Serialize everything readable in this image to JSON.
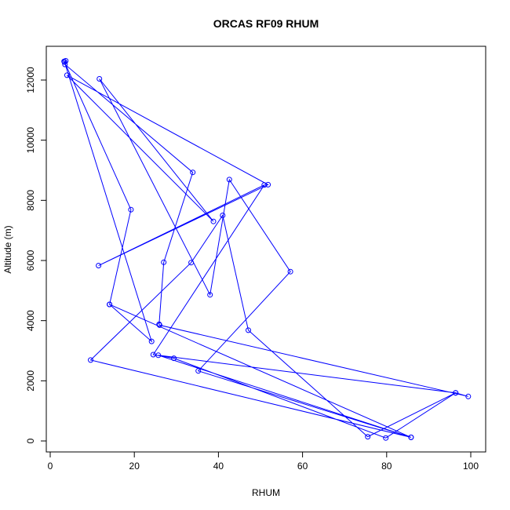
{
  "chart_data": {
    "type": "line",
    "title": "ORCAS RF09 RHUM",
    "xlabel": "RHUM",
    "ylabel": "Altitude (m)",
    "xlim": [
      0,
      100
    ],
    "ylim": [
      0,
      12000
    ],
    "x_ticks": [
      0,
      20,
      40,
      60,
      80,
      100
    ],
    "x_tick_labels": [
      "0",
      "20",
      "40",
      "60",
      "80",
      "100"
    ],
    "y_ticks": [
      0,
      2000,
      4000,
      6000,
      8000,
      10000,
      12000
    ],
    "y_tick_labels": [
      "0",
      "2000",
      "4000",
      "6000",
      "8000",
      "10000",
      "12000"
    ],
    "grid": false,
    "legend": "none",
    "series": [
      {
        "color": "#0000ff",
        "points": [
          [
            3.3,
            12620
          ],
          [
            3.7,
            12640
          ],
          [
            3.5,
            12520
          ],
          [
            33.9,
            8930
          ],
          [
            27.0,
            5940
          ],
          [
            25.9,
            3880
          ],
          [
            26.0,
            3850
          ],
          [
            99.4,
            1480
          ],
          [
            96.4,
            1600
          ],
          [
            79.8,
            100
          ],
          [
            29.4,
            2750
          ],
          [
            24.5,
            2870
          ],
          [
            50.9,
            8510
          ],
          [
            11.5,
            5830
          ],
          [
            51.8,
            8520
          ],
          [
            4.0,
            12160
          ],
          [
            38.8,
            7300
          ],
          [
            11.7,
            12040
          ],
          [
            38.0,
            4860
          ],
          [
            42.6,
            8690
          ],
          [
            57.1,
            5630
          ],
          [
            35.2,
            2330
          ],
          [
            85.8,
            120
          ],
          [
            25.7,
            2850
          ],
          [
            96.4,
            1600
          ],
          [
            75.5,
            140
          ],
          [
            47.1,
            3680
          ],
          [
            41.0,
            7500
          ],
          [
            33.5,
            5930
          ],
          [
            9.6,
            2690
          ],
          [
            85.8,
            120
          ],
          [
            14.1,
            4540
          ],
          [
            19.2,
            7690
          ],
          [
            3.4,
            12600
          ],
          [
            24.1,
            3310
          ],
          [
            14.1,
            4540
          ]
        ]
      }
    ]
  }
}
